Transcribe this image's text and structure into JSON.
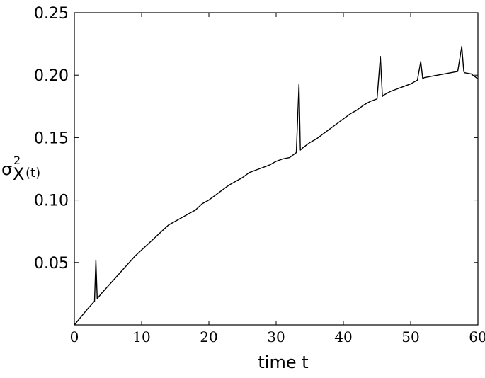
{
  "chart_data": {
    "type": "line",
    "title": "",
    "xlabel": "time t",
    "ylabel": {
      "base": "σ",
      "superscript": "2",
      "subscript": "X",
      "suffix": "(t)"
    },
    "xlim": [
      0,
      60
    ],
    "ylim": [
      0,
      0.25
    ],
    "xticks": [
      0,
      10,
      20,
      30,
      40,
      50,
      60
    ],
    "xtick_labels": [
      "0",
      "10",
      "20",
      "30",
      "40",
      "50",
      "60"
    ],
    "yticks": [
      0.05,
      0.1,
      0.15,
      0.2,
      0.25
    ],
    "ytick_labels": [
      "0.05",
      "0.10",
      "0.15",
      "0.20",
      "0.25"
    ],
    "grid": false,
    "line_color": "#000000",
    "series": [
      {
        "x": [
          0,
          1,
          2,
          3.0,
          3.2,
          3.4,
          4,
          5,
          6,
          7,
          8,
          9,
          10,
          11,
          12,
          13,
          14,
          15,
          16,
          17,
          18,
          19,
          20,
          21,
          22,
          23,
          24,
          25,
          26,
          27,
          28,
          29,
          30,
          31,
          32,
          33,
          33.4,
          33.6,
          33.8,
          34,
          35,
          36,
          37,
          38,
          39,
          40,
          41,
          42,
          43,
          44,
          45,
          45.5,
          45.8,
          46,
          47,
          48,
          49,
          50,
          51,
          51.5,
          51.8,
          52,
          53,
          54,
          55,
          56,
          57,
          57.6,
          57.9,
          58,
          59,
          60
        ],
        "y": [
          0,
          0.0065,
          0.013,
          0.019,
          0.052,
          0.021,
          0.025,
          0.031,
          0.037,
          0.043,
          0.049,
          0.055,
          0.06,
          0.065,
          0.07,
          0.075,
          0.08,
          0.083,
          0.086,
          0.089,
          0.092,
          0.097,
          0.1,
          0.104,
          0.108,
          0.112,
          0.115,
          0.118,
          0.122,
          0.124,
          0.126,
          0.128,
          0.131,
          0.133,
          0.134,
          0.138,
          0.193,
          0.14,
          0.141,
          0.142,
          0.146,
          0.149,
          0.153,
          0.157,
          0.161,
          0.165,
          0.169,
          0.172,
          0.176,
          0.179,
          0.181,
          0.215,
          0.183,
          0.184,
          0.187,
          0.189,
          0.191,
          0.193,
          0.196,
          0.211,
          0.197,
          0.198,
          0.199,
          0.2,
          0.201,
          0.202,
          0.203,
          0.223,
          0.203,
          0.202,
          0.201,
          0.197
        ]
      }
    ]
  }
}
